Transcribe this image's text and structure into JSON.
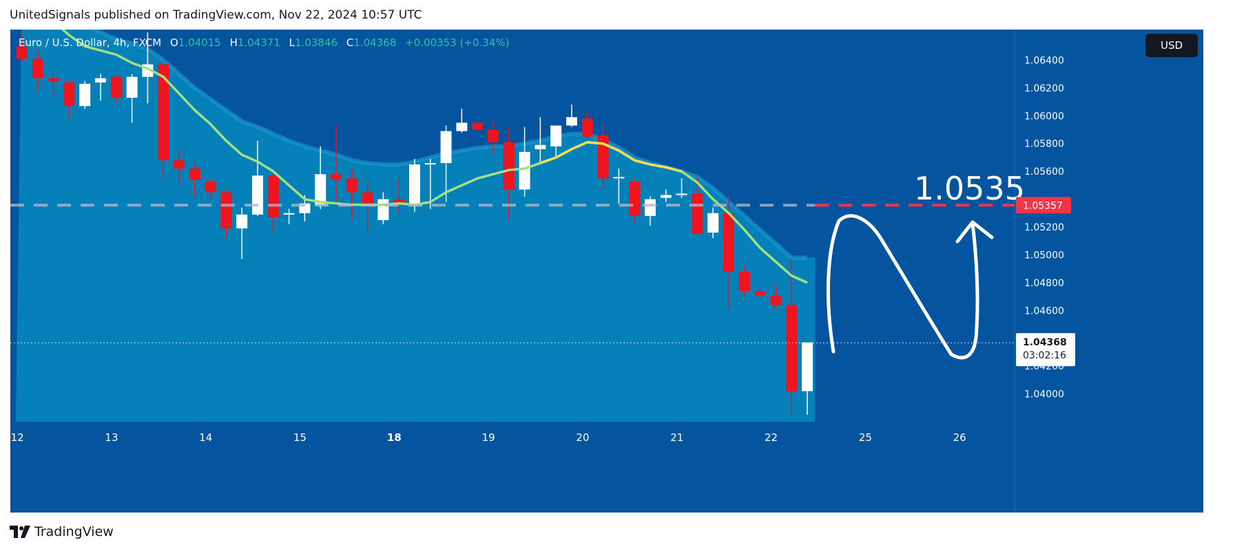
{
  "header": {
    "publish_text": "UnitedSignals published on TradingView.com, Nov 22, 2024 10:57 UTC"
  },
  "legend": {
    "symbol": "Euro / U.S. Dollar, 4h, FXCM",
    "o_label": "O",
    "o_value": "1.04015",
    "h_label": "H",
    "h_value": "1.04371",
    "l_label": "L",
    "l_value": "1.03846",
    "c_label": "C",
    "c_value": "1.04368",
    "change": "+0.00353 (+0.34%)"
  },
  "currency_button": "USD",
  "annotation": {
    "target_text": "1.0535"
  },
  "footer": {
    "brand": "TradingView"
  },
  "colors": {
    "background": "#0454a0",
    "area_fill": "#0680b8",
    "up_candle": "#ffffff",
    "down_candle": "#f0141e",
    "ma_line": "#a3e07e",
    "ma_highlight": "#f0e050",
    "target_line": "#f23645",
    "price_label_bg": "#ffffff"
  },
  "chart_data": {
    "type": "candlestick",
    "title": "",
    "ylim": [
      1.038,
      1.0662
    ],
    "y_ticks": [
      1.064,
      1.062,
      1.06,
      1.058,
      1.056,
      1.052,
      1.05,
      1.048,
      1.046,
      1.042,
      1.04
    ],
    "y_tick_labels": [
      "1.06400",
      "1.06200",
      "1.06000",
      "1.05800",
      "1.05600",
      "1.05200",
      "1.05000",
      "1.04800",
      "1.04600",
      "1.04200",
      "1.04000"
    ],
    "x_ticks": [
      {
        "label": "12",
        "index": -0.3,
        "bold": false
      },
      {
        "label": "13",
        "index": 5.7,
        "bold": false
      },
      {
        "label": "14",
        "index": 11.7,
        "bold": false
      },
      {
        "label": "15",
        "index": 17.7,
        "bold": false
      },
      {
        "label": "18",
        "index": 23.7,
        "bold": true
      },
      {
        "label": "19",
        "index": 29.7,
        "bold": false
      },
      {
        "label": "20",
        "index": 35.7,
        "bold": false
      },
      {
        "label": "21",
        "index": 41.7,
        "bold": false
      },
      {
        "label": "22",
        "index": 47.7,
        "bold": false
      },
      {
        "label": "25",
        "index": 53.7,
        "bold": false
      },
      {
        "label": "26",
        "index": 59.7,
        "bold": false
      }
    ],
    "candles": [
      [
        1.065,
        1.0659,
        1.0639,
        1.0641
      ],
      [
        1.0641,
        1.0647,
        1.0618,
        1.0627
      ],
      [
        1.0627,
        1.0631,
        1.0613,
        1.0625
      ],
      [
        1.0624,
        1.0626,
        1.0598,
        1.0607
      ],
      [
        1.0607,
        1.0625,
        1.0605,
        1.0623
      ],
      [
        1.0624,
        1.063,
        1.0611,
        1.0627
      ],
      [
        1.0628,
        1.063,
        1.0609,
        1.0613
      ],
      [
        1.0613,
        1.063,
        1.0595,
        1.0628
      ],
      [
        1.0628,
        1.066,
        1.0609,
        1.0637
      ],
      [
        1.0637,
        1.0637,
        1.0555,
        1.0568
      ],
      [
        1.0568,
        1.0576,
        1.0552,
        1.0562
      ],
      [
        1.0562,
        1.0566,
        1.0542,
        1.0554
      ],
      [
        1.0553,
        1.0556,
        1.0539,
        1.0545
      ],
      [
        1.0545,
        1.0547,
        1.0512,
        1.0519
      ],
      [
        1.0519,
        1.0534,
        1.0497,
        1.0529
      ],
      [
        1.0529,
        1.0582,
        1.0528,
        1.0557
      ],
      [
        1.0557,
        1.0558,
        1.0517,
        1.0527
      ],
      [
        1.0529,
        1.0533,
        1.0522,
        1.053
      ],
      [
        1.053,
        1.0543,
        1.0524,
        1.0537
      ],
      [
        1.0536,
        1.0578,
        1.0533,
        1.0558
      ],
      [
        1.0558,
        1.0593,
        1.0536,
        1.0554
      ],
      [
        1.0555,
        1.0562,
        1.0525,
        1.0545
      ],
      [
        1.0545,
        1.0553,
        1.0517,
        1.0535
      ],
      [
        1.0525,
        1.0545,
        1.0522,
        1.054
      ],
      [
        1.054,
        1.0555,
        1.053,
        1.0536
      ],
      [
        1.0536,
        1.0569,
        1.0531,
        1.0565
      ],
      [
        1.0565,
        1.0569,
        1.0533,
        1.0566
      ],
      [
        1.0566,
        1.0593,
        1.0538,
        1.0589
      ],
      [
        1.0589,
        1.0605,
        1.0588,
        1.0595
      ],
      [
        1.0595,
        1.0596,
        1.0589,
        1.059
      ],
      [
        1.059,
        1.0597,
        1.0572,
        1.0581
      ],
      [
        1.0581,
        1.0591,
        1.0525,
        1.0547
      ],
      [
        1.0547,
        1.0592,
        1.0542,
        1.0574
      ],
      [
        1.0576,
        1.0599,
        1.0565,
        1.0579
      ],
      [
        1.0578,
        1.0593,
        1.057,
        1.0593
      ],
      [
        1.0593,
        1.0608,
        1.0592,
        1.0599
      ],
      [
        1.0598,
        1.0603,
        1.0584,
        1.0585
      ],
      [
        1.0586,
        1.0594,
        1.0548,
        1.0555
      ],
      [
        1.0555,
        1.0562,
        1.0537,
        1.0556
      ],
      [
        1.0553,
        1.0556,
        1.0522,
        1.0528
      ],
      [
        1.0528,
        1.0542,
        1.0521,
        1.054
      ],
      [
        1.0541,
        1.0547,
        1.0538,
        1.0543
      ],
      [
        1.0544,
        1.0555,
        1.0541,
        1.0544
      ],
      [
        1.0544,
        1.0556,
        1.0515,
        1.0515
      ],
      [
        1.0516,
        1.0534,
        1.0512,
        1.053
      ],
      [
        1.053,
        1.0542,
        1.0461,
        1.0488
      ],
      [
        1.0488,
        1.0492,
        1.047,
        1.0474
      ],
      [
        1.0474,
        1.0477,
        1.0469,
        1.0471
      ],
      [
        1.0471,
        1.0478,
        1.0461,
        1.0464
      ],
      [
        1.0464,
        1.0497,
        1.0385,
        1.0402
      ],
      [
        1.0402,
        1.0437,
        1.0385,
        1.0437
      ]
    ],
    "ma_upper": [
      1.07,
      1.069,
      1.068,
      1.0672,
      1.0666,
      1.066,
      1.0655,
      1.0652,
      1.0648,
      1.064,
      1.063,
      1.062,
      1.0612,
      1.0604,
      1.0596,
      1.0592,
      1.0587,
      1.0582,
      1.0578,
      1.0575,
      1.0572,
      1.0568,
      1.0566,
      1.0565,
      1.0565,
      1.0567,
      1.057,
      1.0573,
      1.0575,
      1.0577,
      1.0578,
      1.0578,
      1.058,
      1.0582,
      1.0585,
      1.0587,
      1.0587,
      1.0583,
      1.0577,
      1.057,
      1.0566,
      1.0563,
      1.056,
      1.0556,
      1.0548,
      1.0538,
      1.0528,
      1.0518,
      1.0508,
      1.0498,
      1.0498
    ],
    "ma_line": [
      1.0695,
      1.0682,
      1.0668,
      1.0658,
      1.065,
      1.0647,
      1.0644,
      1.0638,
      1.0634,
      1.0628,
      1.0616,
      1.0604,
      1.0594,
      1.0582,
      1.0572,
      1.0567,
      1.056,
      1.055,
      1.054,
      1.0538,
      1.0537,
      1.0536,
      1.0536,
      1.0536,
      1.0537,
      1.0536,
      1.0538,
      1.0545,
      1.055,
      1.0555,
      1.0558,
      1.0561,
      1.0562,
      1.0566,
      1.057,
      1.0576,
      1.0581,
      1.058,
      1.0575,
      1.0568,
      1.0565,
      1.0563,
      1.056,
      1.0552,
      1.054,
      1.053,
      1.0518,
      1.0505,
      1.0495,
      1.0485,
      1.048
    ],
    "ma_highlight_range": [
      33,
      42
    ],
    "target_price": 1.05357,
    "target_label": "1.05357",
    "current_price": 1.04368,
    "current_label": "1.04368",
    "countdown": "03:02:16"
  }
}
